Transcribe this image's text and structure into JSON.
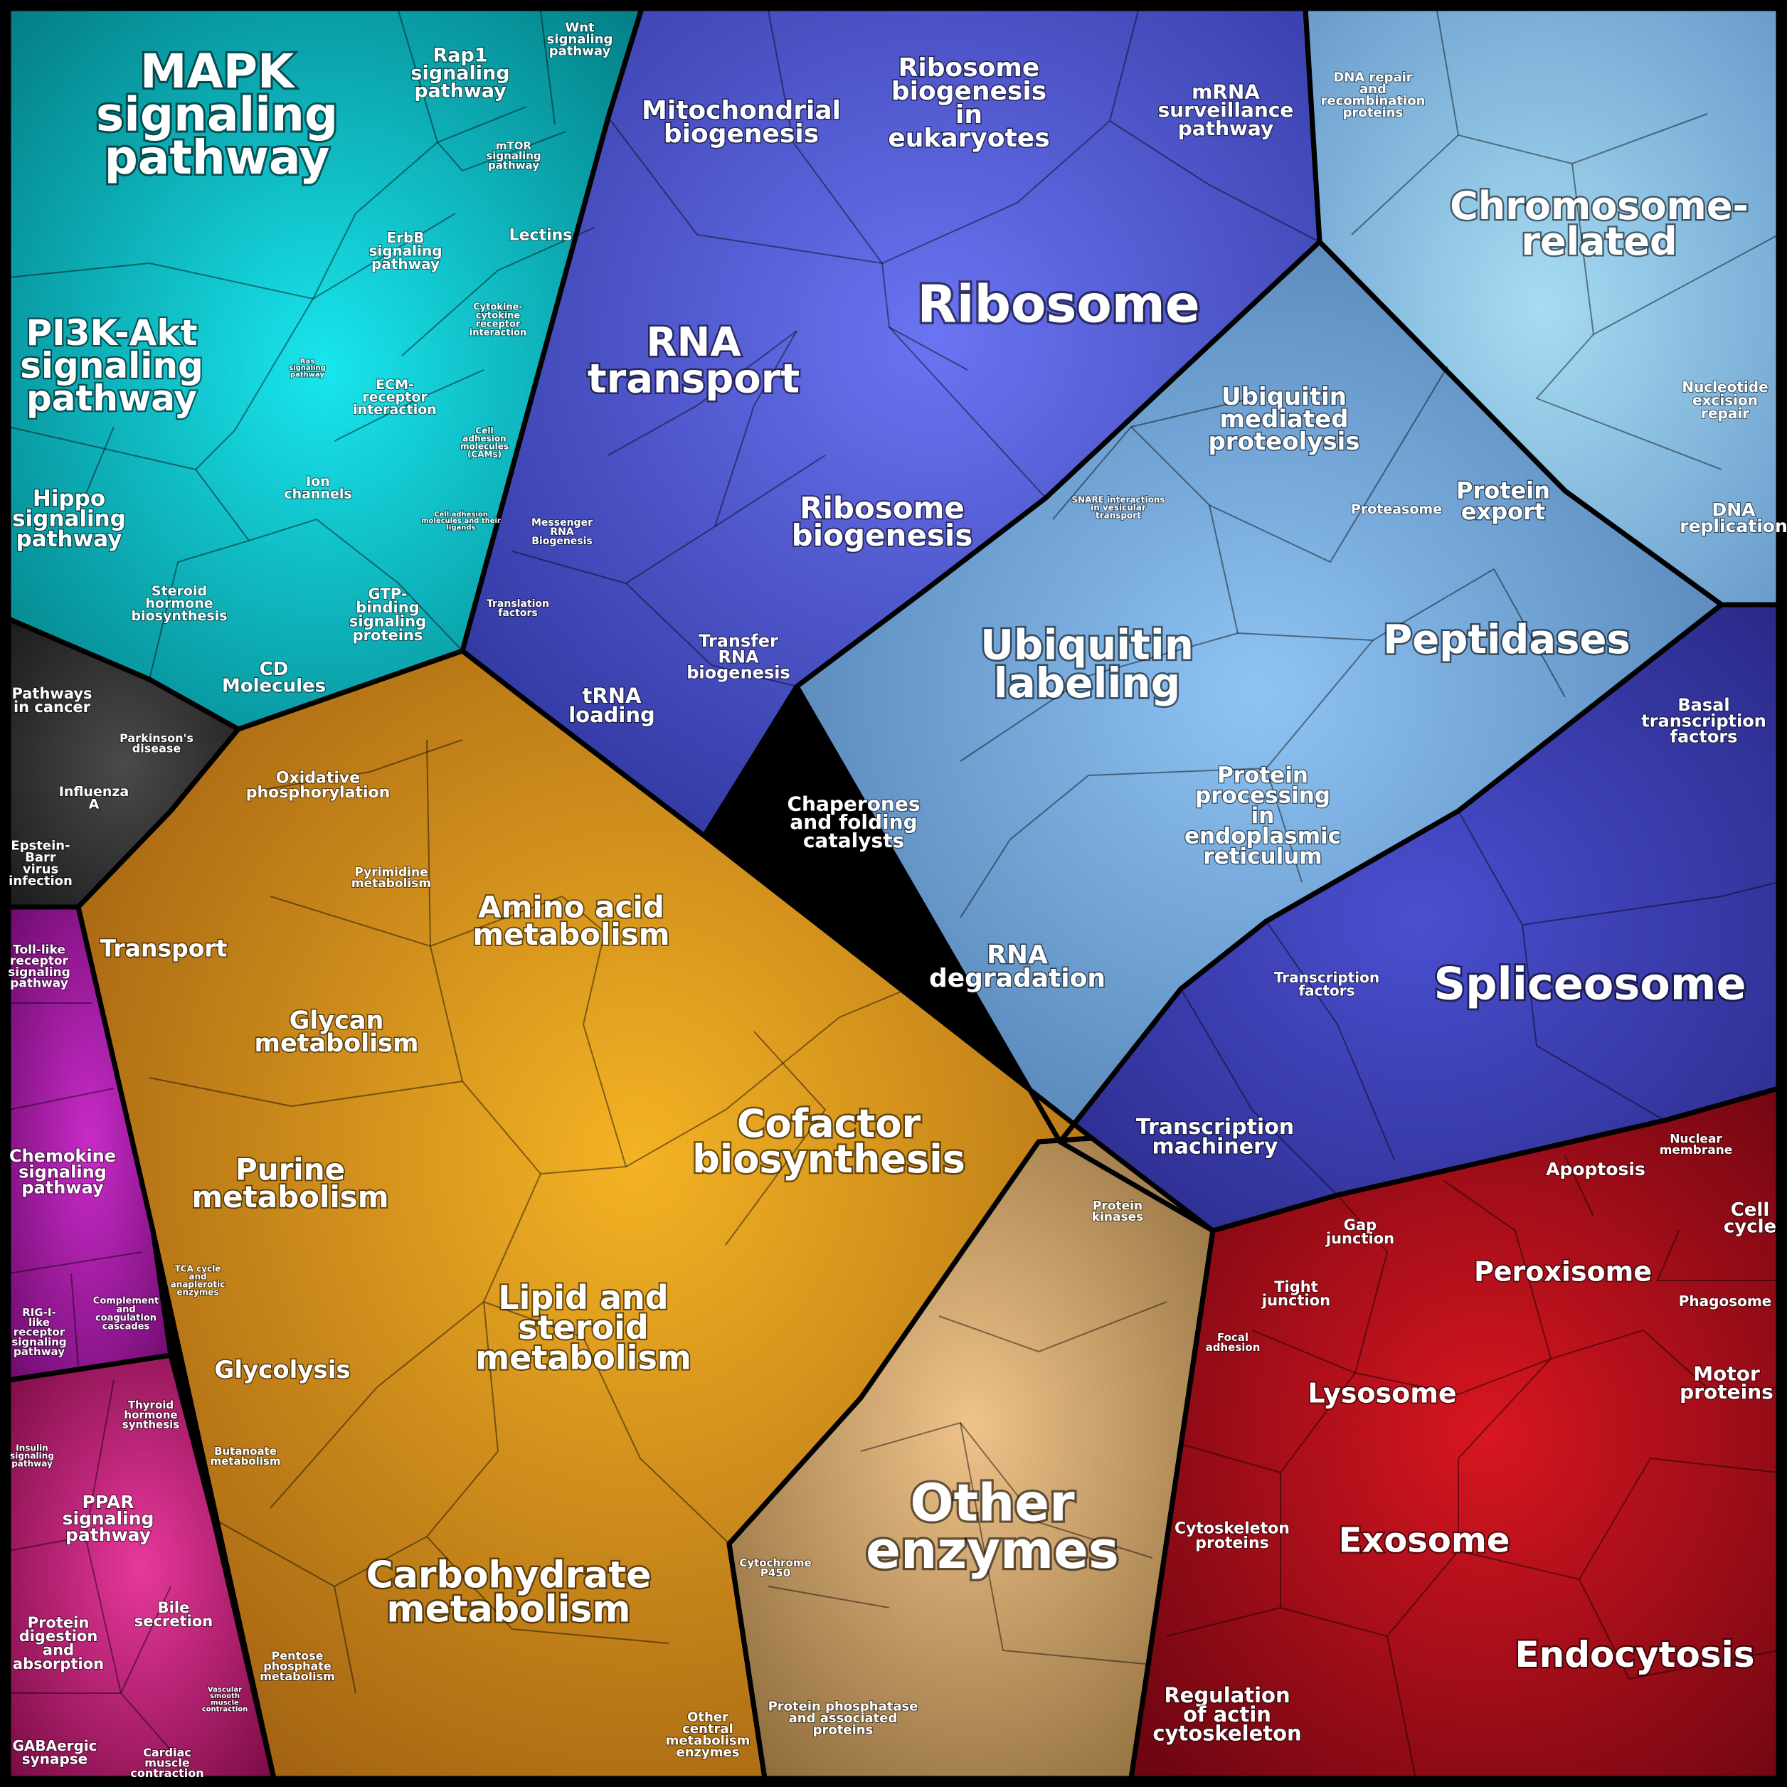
{
  "diagram": {
    "groups": [
      {
        "id": "signaling",
        "color": "#0aa6b0",
        "labels": [
          {
            "id": "mapk",
            "text": [
              "MAPK",
              "signaling",
              "pathway"
            ]
          },
          {
            "id": "rap1",
            "text": [
              "Rap1",
              "signaling",
              "pathway"
            ]
          },
          {
            "id": "wnt",
            "text": [
              "Wnt",
              "signaling",
              "pathway"
            ]
          },
          {
            "id": "mtor",
            "text": [
              "mTOR",
              "signaling",
              "pathway"
            ]
          },
          {
            "id": "erbb",
            "text": [
              "ErbB",
              "signaling",
              "pathway"
            ]
          },
          {
            "id": "lectins",
            "text": [
              "Lectins"
            ]
          },
          {
            "id": "pi3k",
            "text": [
              "PI3K-Akt",
              "signaling",
              "pathway"
            ]
          },
          {
            "id": "ras",
            "text": [
              "Ras",
              "signaling",
              "pathway"
            ]
          },
          {
            "id": "cytokine",
            "text": [
              "Cytokine-",
              "cytokine",
              "receptor",
              "interaction"
            ]
          },
          {
            "id": "ecm",
            "text": [
              "ECM-",
              "receptor",
              "interaction"
            ]
          },
          {
            "id": "cams",
            "text": [
              "Cell",
              "adhesion",
              "molecules",
              "(CAMs)"
            ]
          },
          {
            "id": "ion",
            "text": [
              "Ion",
              "channels"
            ]
          },
          {
            "id": "celladh",
            "text": [
              "Cell adhesion",
              "molecules and their",
              "ligands"
            ]
          },
          {
            "id": "hippo",
            "text": [
              "Hippo",
              "signaling",
              "pathway"
            ]
          },
          {
            "id": "steroid",
            "text": [
              "Steroid",
              "hormone",
              "biosynthesis"
            ]
          },
          {
            "id": "gtp",
            "text": [
              "GTP-",
              "binding",
              "signaling",
              "proteins"
            ]
          },
          {
            "id": "cd",
            "text": [
              "CD",
              "Molecules"
            ]
          }
        ]
      },
      {
        "id": "rna",
        "color": "#4a4fc8",
        "labels": [
          {
            "id": "mito",
            "text": [
              "Mitochondrial",
              "biogenesis"
            ]
          },
          {
            "id": "ribobioeuk",
            "text": [
              "Ribosome",
              "biogenesis",
              "in",
              "eukaryotes"
            ]
          },
          {
            "id": "mrna",
            "text": [
              "mRNA",
              "surveillance",
              "pathway"
            ]
          },
          {
            "id": "ribosome",
            "text": [
              "Ribosome"
            ]
          },
          {
            "id": "rnatransport",
            "text": [
              "RNA",
              "transport"
            ]
          },
          {
            "id": "ribobio",
            "text": [
              "Ribosome",
              "biogenesis"
            ]
          },
          {
            "id": "messenger",
            "text": [
              "Messenger",
              "RNA",
              "Biogenesis"
            ]
          },
          {
            "id": "translation",
            "text": [
              "Translation",
              "factors"
            ]
          },
          {
            "id": "transfer",
            "text": [
              "Transfer",
              "RNA",
              "biogenesis"
            ]
          },
          {
            "id": "trna",
            "text": [
              "tRNA",
              "loading"
            ]
          }
        ]
      },
      {
        "id": "genetic",
        "color": "#8fb3d6",
        "labels": [
          {
            "id": "dnarepair",
            "text": [
              "DNA repair",
              "and",
              "recombination",
              "proteins"
            ]
          },
          {
            "id": "chromosome",
            "text": [
              "Chromosome-",
              "related"
            ]
          },
          {
            "id": "nucleotide",
            "text": [
              "Nucleotide",
              "excision",
              "repair"
            ]
          },
          {
            "id": "dnarep",
            "text": [
              "DNA",
              "replication"
            ]
          },
          {
            "id": "ubiqmed",
            "text": [
              "Ubiquitin",
              "mediated",
              "proteolysis"
            ]
          },
          {
            "id": "snare",
            "text": [
              "SNARE interactions",
              "in vesicular",
              "transport"
            ]
          },
          {
            "id": "proteasome",
            "text": [
              "Proteasome"
            ]
          },
          {
            "id": "protexport",
            "text": [
              "Protein",
              "export"
            ]
          },
          {
            "id": "ubiqlab",
            "text": [
              "Ubiquitin",
              "labeling"
            ]
          },
          {
            "id": "peptidases",
            "text": [
              "Peptidases"
            ]
          },
          {
            "id": "chaperones",
            "text": [
              "Chaperones",
              "and folding",
              "catalysts"
            ]
          },
          {
            "id": "protproc",
            "text": [
              "Protein",
              "processing",
              "in",
              "endoplasmic",
              "reticulum"
            ]
          },
          {
            "id": "rnadeg",
            "text": [
              "RNA",
              "degradation"
            ]
          }
        ]
      },
      {
        "id": "transcription",
        "color": "#3a3aa8",
        "labels": [
          {
            "id": "basal",
            "text": [
              "Basal",
              "transcription",
              "factors"
            ]
          },
          {
            "id": "spliceosome",
            "text": [
              "Spliceosome"
            ]
          },
          {
            "id": "tfactors",
            "text": [
              "Transcription",
              "factors"
            ]
          },
          {
            "id": "tmachinery",
            "text": [
              "Transcription",
              "machinery"
            ]
          }
        ]
      },
      {
        "id": "disease",
        "color": "#3a3a3a",
        "labels": [
          {
            "id": "cancer",
            "text": [
              "Pathways",
              "in cancer"
            ]
          },
          {
            "id": "parkinson",
            "text": [
              "Parkinson's",
              "disease"
            ]
          },
          {
            "id": "influenza",
            "text": [
              "Influenza",
              "A"
            ]
          },
          {
            "id": "ebv",
            "text": [
              "Epstein-",
              "Barr",
              "virus",
              "infection"
            ]
          }
        ]
      },
      {
        "id": "metabolism",
        "color": "#d08a1a",
        "labels": [
          {
            "id": "oxphos",
            "text": [
              "Oxidative",
              "phosphorylation"
            ]
          },
          {
            "id": "pyrimidine",
            "text": [
              "Pyrimidine",
              "metabolism"
            ]
          },
          {
            "id": "amino",
            "text": [
              "Amino acid",
              "metabolism"
            ]
          },
          {
            "id": "transport",
            "text": [
              "Transport"
            ]
          },
          {
            "id": "glycan",
            "text": [
              "Glycan",
              "metabolism"
            ]
          },
          {
            "id": "cofactor",
            "text": [
              "Cofactor",
              "biosynthesis"
            ]
          },
          {
            "id": "purine",
            "text": [
              "Purine",
              "metabolism"
            ]
          },
          {
            "id": "lipid",
            "text": [
              "Lipid and",
              "steroid",
              "metabolism"
            ]
          },
          {
            "id": "tca",
            "text": [
              "TCA cycle",
              "and",
              "anaplerotic",
              "enzymes"
            ]
          },
          {
            "id": "glycolysis",
            "text": [
              "Glycolysis"
            ]
          },
          {
            "id": "butanoate",
            "text": [
              "Butanoate",
              "metabolism"
            ]
          },
          {
            "id": "carbo",
            "text": [
              "Carbohydrate",
              "metabolism"
            ]
          },
          {
            "id": "pentose",
            "text": [
              "Pentose",
              "phosphate",
              "metabolism"
            ]
          },
          {
            "id": "othercentral",
            "text": [
              "Other",
              "central",
              "metabolism",
              "enzymes"
            ]
          }
        ]
      },
      {
        "id": "enzymes",
        "color": "#c9a56a",
        "labels": [
          {
            "id": "kinases",
            "text": [
              "Protein",
              "kinases"
            ]
          },
          {
            "id": "otherenz",
            "text": [
              "Other",
              "enzymes"
            ]
          },
          {
            "id": "p450",
            "text": [
              "Cytochrome",
              "P450"
            ]
          },
          {
            "id": "phosphatase",
            "text": [
              "Protein phosphatase",
              "and associated",
              "proteins"
            ]
          }
        ]
      },
      {
        "id": "immune",
        "color": "#9b1a9b",
        "labels": [
          {
            "id": "toll",
            "text": [
              "Toll-like",
              "receptor",
              "signaling",
              "pathway"
            ]
          },
          {
            "id": "chemokine",
            "text": [
              "Chemokine",
              "signaling",
              "pathway"
            ]
          },
          {
            "id": "rigi",
            "text": [
              "RIG-I-",
              "like",
              "receptor",
              "signaling",
              "pathway"
            ]
          },
          {
            "id": "complement",
            "text": [
              "Complement",
              "and",
              "coagulation",
              "cascades"
            ]
          }
        ]
      },
      {
        "id": "organismal",
        "color": "#c2287a",
        "labels": [
          {
            "id": "insulin",
            "text": [
              "Insulin",
              "signaling",
              "pathway"
            ]
          },
          {
            "id": "thyroid",
            "text": [
              "Thyroid",
              "hormone",
              "synthesis"
            ]
          },
          {
            "id": "ppar",
            "text": [
              "PPAR",
              "signaling",
              "pathway"
            ]
          },
          {
            "id": "protdig",
            "text": [
              "Protein",
              "digestion",
              "and",
              "absorption"
            ]
          },
          {
            "id": "bile",
            "text": [
              "Bile",
              "secretion"
            ]
          },
          {
            "id": "vascular",
            "text": [
              "Vascular",
              "smooth",
              "muscle",
              "contraction"
            ]
          },
          {
            "id": "gaba",
            "text": [
              "GABAergic",
              "synapse"
            ]
          },
          {
            "id": "cardiac",
            "text": [
              "Cardiac",
              "muscle",
              "contraction"
            ]
          }
        ]
      },
      {
        "id": "cellular",
        "color": "#b01020",
        "labels": [
          {
            "id": "apoptosis",
            "text": [
              "Apoptosis"
            ]
          },
          {
            "id": "nuclear",
            "text": [
              "Nuclear",
              "membrane"
            ]
          },
          {
            "id": "cellcycle",
            "text": [
              "Cell",
              "cycle"
            ]
          },
          {
            "id": "gap",
            "text": [
              "Gap",
              "junction"
            ]
          },
          {
            "id": "peroxisome",
            "text": [
              "Peroxisome"
            ]
          },
          {
            "id": "phagosome",
            "text": [
              "Phagosome"
            ]
          },
          {
            "id": "tight",
            "text": [
              "Tight",
              "junction"
            ]
          },
          {
            "id": "focal",
            "text": [
              "Focal",
              "adhesion"
            ]
          },
          {
            "id": "lysosome",
            "text": [
              "Lysosome"
            ]
          },
          {
            "id": "motor",
            "text": [
              "Motor",
              "proteins"
            ]
          },
          {
            "id": "cytoskeleton",
            "text": [
              "Cytoskeleton",
              "proteins"
            ]
          },
          {
            "id": "exosome",
            "text": [
              "Exosome"
            ]
          },
          {
            "id": "endocytosis",
            "text": [
              "Endocytosis"
            ]
          },
          {
            "id": "actin",
            "text": [
              "Regulation",
              "of actin",
              "cytoskeleton"
            ]
          }
        ]
      }
    ]
  }
}
